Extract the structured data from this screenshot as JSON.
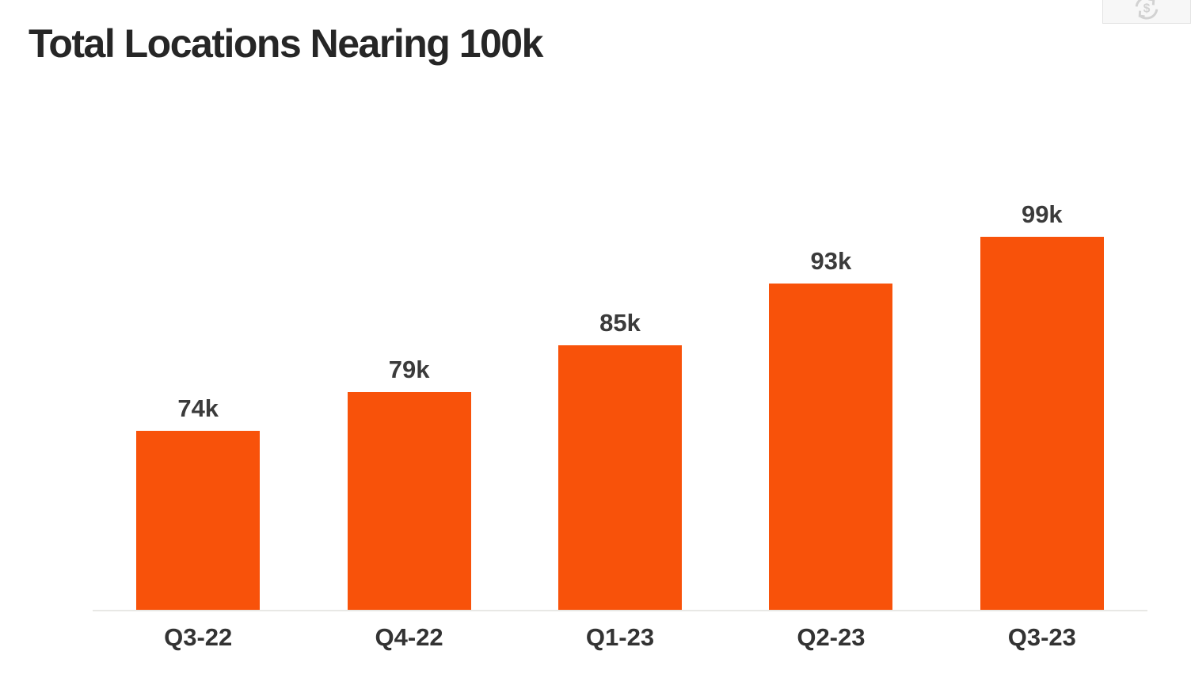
{
  "header": {
    "title": "Total Locations Nearing 100k"
  },
  "toolbar": {
    "icon": "currency-refresh-icon"
  },
  "chart_data": {
    "type": "bar",
    "title": "Total Locations Nearing 100k",
    "categories": [
      "Q3-22",
      "Q4-22",
      "Q1-23",
      "Q2-23",
      "Q3-23"
    ],
    "values": [
      74000,
      79000,
      85000,
      93000,
      99000
    ],
    "value_labels": [
      "74k",
      "79k",
      "85k",
      "93k",
      "99k"
    ],
    "xlabel": "",
    "ylabel": "",
    "ylim": [
      51000,
      104000
    ],
    "y_axis_visible": false,
    "grid": false,
    "legend": false,
    "bar_color": "#f8520a",
    "value_label_color": "#3b3b3b",
    "category_label_color": "#333333",
    "baseline_color": "#e8e8e5",
    "title_color": "#262626"
  }
}
